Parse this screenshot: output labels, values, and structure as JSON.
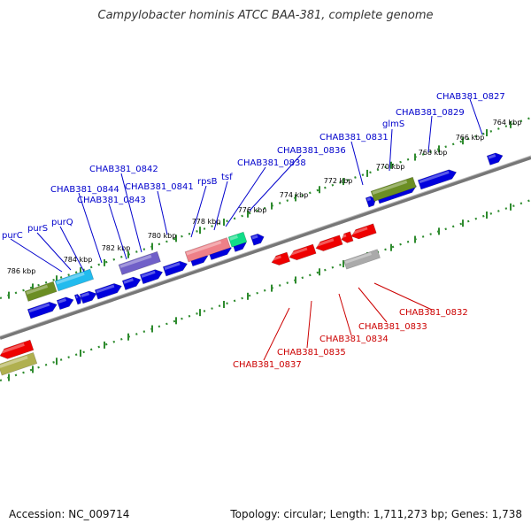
{
  "title": "Campylobacter hominis ATCC BAA-381, complete genome",
  "footer": {
    "accession": "Accession: NC_009714",
    "summary": "Topology: circular; Length: 1,711,273 bp; Genes: 1,738"
  },
  "colors": {
    "forward": "#0000dd",
    "reverse": "#ee0000",
    "label_forward": "#0000cc",
    "label_reverse": "#cc0000",
    "backbone": "#888888",
    "ruler": "#2e8b2e"
  },
  "ruler_labels": [
    "764 kbp",
    "766 kbp",
    "768 kbp",
    "770 kbp",
    "772 kbp",
    "774 kbp",
    "776 kbp",
    "778 kbp",
    "780 kbp",
    "782 kbp",
    "784 kbp",
    "786 kbp"
  ],
  "forward_labels": [
    "CHAB381_0827",
    "CHAB381_0829",
    "glmS",
    "CHAB381_0831",
    "CHAB381_0836",
    "CHAB381_0838",
    "tsf",
    "rpsB",
    "CHAB381_0841",
    "CHAB381_0842",
    "CHAB381_0843",
    "CHAB381_0844",
    "purQ",
    "purS",
    "purC"
  ],
  "reverse_labels": [
    "CHAB381_0832",
    "CHAB381_0833",
    "CHAB381_0834",
    "CHAB381_0835",
    "CHAB381_0837"
  ]
}
